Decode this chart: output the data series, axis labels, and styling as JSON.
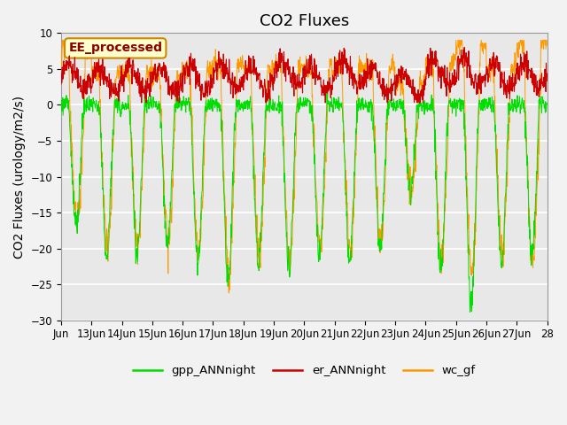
{
  "title": "CO2 Fluxes",
  "ylabel": "CO2 Fluxes (urology/m2/s)",
  "ylim": [
    -30,
    10
  ],
  "yticks": [
    -30,
    -25,
    -20,
    -15,
    -10,
    -5,
    0,
    5,
    10
  ],
  "x_tick_labels": [
    "Jun",
    "13Jun",
    "14Jun",
    "15Jun",
    "16Jun",
    "17Jun",
    "18Jun",
    "19Jun",
    "20Jun",
    "21Jun",
    "22Jun",
    "23Jun",
    "24Jun",
    "25Jun",
    "26Jun",
    "27Jun",
    "28"
  ],
  "annotation_text": "EE_processed",
  "annotation_bg": "#ffffcc",
  "annotation_border": "#cc8800",
  "line_colors": {
    "gpp": "#00dd00",
    "er": "#cc0000",
    "wc": "#ff9900"
  },
  "legend_labels": [
    "gpp_ANNnight",
    "er_ANNnight",
    "wc_gf"
  ],
  "plot_bg": "#e8e8e8",
  "grid_color": "#ffffff",
  "fig_bg": "#f2f2f2",
  "title_fontsize": 13,
  "axis_fontsize": 10,
  "tick_fontsize": 8.5,
  "n_days": 16,
  "pts_per_day": 96,
  "gpp_amplitudes": [
    17,
    21,
    21,
    20,
    22,
    24,
    22,
    23,
    21,
    22,
    20,
    12,
    23,
    28,
    22,
    21
  ],
  "wc_amplitudes": [
    16,
    20,
    20,
    19,
    21,
    24,
    21,
    22,
    20,
    21,
    19,
    12,
    22,
    24,
    21,
    22
  ],
  "er_bases": [
    4.0,
    3.5,
    3.8,
    3.5,
    3.5,
    4.0,
    3.5,
    4.5,
    3.8,
    4.2,
    3.5,
    3.0,
    4.5,
    4.5,
    4.0,
    4.0
  ],
  "wc_night_start": [
    7.5,
    4.5,
    4.5,
    4.0,
    5.0,
    5.5,
    5.0,
    5.5,
    5.0,
    5.5,
    5.0,
    3.0,
    5.5,
    8.5,
    5.0,
    8.5
  ]
}
